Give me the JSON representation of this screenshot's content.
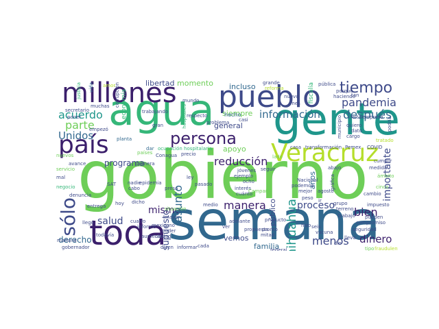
{
  "palette": {
    "dark_purple": "#3b1f6b",
    "indigo": "#3e4a89",
    "blue": "#31688e",
    "teal": "#1f968b",
    "green": "#35b779",
    "light_green": "#6ece58",
    "yellow_green": "#b5de2b",
    "yellow": "#fde725"
  },
  "words": [
    {
      "text": "gobierno",
      "color": "#6ece58"
    },
    {
      "text": "semana",
      "color": "#31688e"
    },
    {
      "text": "gente",
      "color": "#1f968b"
    },
    {
      "text": "agua",
      "color": "#35b779"
    },
    {
      "text": "millones",
      "color": "#3b1f6b"
    },
    {
      "text": "pueblo",
      "color": "#3e4a89"
    },
    {
      "text": "toda",
      "color": "#3b1f6b"
    },
    {
      "text": "país",
      "color": "#3b1f6b"
    },
    {
      "text": "Veracruz",
      "color": "#b5de2b"
    },
    {
      "text": "persona",
      "color": "#3b1f6b"
    },
    {
      "text": "tiempo",
      "color": "#3e4a89"
    },
    {
      "text": "pandemia",
      "color": "#3e4a89"
    },
    {
      "text": "después",
      "color": "#31688e"
    },
    {
      "text": "información",
      "color": "#31688e"
    },
    {
      "text": "acuerdo",
      "color": "#1f968b"
    },
    {
      "text": "parte",
      "color": "#6ece58"
    },
    {
      "text": "Unidos",
      "color": "#31688e"
    },
    {
      "text": "sólo",
      "color": "#3e4a89"
    },
    {
      "text": "reducción",
      "color": "#3b1f6b"
    },
    {
      "text": "programa",
      "color": "#3e4a89"
    },
    {
      "text": "mismo",
      "color": "#3b1f6b"
    },
    {
      "text": "salud",
      "color": "#3e4a89"
    },
    {
      "text": "manera",
      "color": "#3b1f6b"
    },
    {
      "text": "proceso",
      "color": "#3e4a89"
    },
    {
      "text": "bien",
      "color": "#3b1f6b"
    },
    {
      "text": "importante",
      "color": "#3e4a89"
    },
    {
      "text": "dinero",
      "color": "#3b1f6b"
    },
    {
      "text": "menos",
      "color": "#3e4a89"
    },
    {
      "text": "Chihuahua",
      "color": "#1f968b"
    },
    {
      "text": "presupuesto",
      "color": "#3e4a89"
    },
    {
      "text": "asunto",
      "color": "#31688e"
    },
    {
      "text": "derecho",
      "color": "#31688e"
    },
    {
      "text": "libertad",
      "color": "#3e4a89"
    },
    {
      "text": "momento",
      "color": "#6ece58"
    },
    {
      "text": "incluso",
      "color": "#31688e"
    },
    {
      "text": "siempre",
      "color": "#6ece58"
    },
    {
      "text": "general",
      "color": "#3e4a89"
    },
    {
      "text": "apoyo",
      "color": "#6ece58"
    },
    {
      "text": "público",
      "color": "#3e4a89"
    },
    {
      "text": "años",
      "color": "#31688e"
    },
    {
      "text": "familia",
      "color": "#31688e"
    },
    {
      "text": "vemos",
      "color": "#3e4a89"
    },
    {
      "text": "dar",
      "color": "#31688e"
    },
    {
      "text": "ocupación hospitalaria",
      "color": "#35b779"
    },
    {
      "text": "hecho",
      "color": "#31688e"
    },
    {
      "text": "problema",
      "color": "#3e4a89"
    },
    {
      "text": "casi",
      "color": "#3e4a89"
    },
    {
      "text": "mundo",
      "color": "#3e4a89"
    },
    {
      "text": "economía",
      "color": "#35b779"
    },
    {
      "text": "corrupción",
      "color": "#3e4a89"
    },
    {
      "text": "vida",
      "color": "#31688e"
    },
    {
      "text": "justicia",
      "color": "#35b779"
    },
    {
      "text": "secretario",
      "color": "#3e4a89"
    },
    {
      "text": "muchas",
      "color": "#3e4a89"
    },
    {
      "text": "trabajando",
      "color": "#3e4a89"
    },
    {
      "text": "planta",
      "color": "#31688e"
    },
    {
      "text": "empezó",
      "color": "#3e4a89"
    },
    {
      "text": "gran",
      "color": "#3e4a89"
    },
    {
      "text": "respecto",
      "color": "#3e4a89"
    },
    {
      "text": "mes",
      "color": "#3e4a89"
    },
    {
      "text": "nuevo",
      "color": "#3e4a89"
    },
    {
      "text": "grande",
      "color": "#3e4a89"
    },
    {
      "text": "reforma",
      "color": "#b5de2b"
    },
    {
      "text": "fiscalía",
      "color": "#35b779"
    },
    {
      "text": "pública",
      "color": "#3e4a89"
    },
    {
      "text": "haciendo",
      "color": "#3e4a89"
    },
    {
      "text": "falta",
      "color": "#3e4a89"
    },
    {
      "text": "empresa",
      "color": "#3e4a89"
    },
    {
      "text": "dato",
      "color": "#3e4a89"
    },
    {
      "text": "quiero",
      "color": "#3e4a89"
    },
    {
      "text": "cargo",
      "color": "#3e4a89"
    },
    {
      "text": "casa",
      "color": "#3e4a89"
    },
    {
      "text": "transformación",
      "color": "#3e4a89"
    },
    {
      "text": "Pemex",
      "color": "#3e4a89"
    },
    {
      "text": "COVID",
      "color": "#3e4a89"
    },
    {
      "text": "tratado",
      "color": "#b5de2b"
    },
    {
      "text": "podría",
      "color": "#3e4a89"
    },
    {
      "text": "epidemia",
      "color": "#3e4a89"
    },
    {
      "text": "primera",
      "color": "#3e4a89"
    },
    {
      "text": "avance",
      "color": "#3e4a89"
    },
    {
      "text": "servicio",
      "color": "#6ece58"
    },
    {
      "text": "negocio",
      "color": "#35b779"
    },
    {
      "text": "nadie",
      "color": "#3e4a89"
    },
    {
      "text": "cabo",
      "color": "#3e4a89"
    },
    {
      "text": "presa",
      "color": "#3e4a89"
    },
    {
      "text": "ley",
      "color": "#3e4a89"
    },
    {
      "text": "jóvenes",
      "color": "#3e4a89"
    },
    {
      "text": "ejemplo",
      "color": "#3e4a89"
    },
    {
      "text": "ocho",
      "color": "#3e4a89"
    },
    {
      "text": "interés",
      "color": "#3e4a89"
    },
    {
      "text": "cuánto",
      "color": "#3e4a89"
    },
    {
      "text": "seguir",
      "color": "#3e4a89"
    },
    {
      "text": "medida",
      "color": "#3e4a89"
    },
    {
      "text": "cumplir",
      "color": "#3e4a89"
    },
    {
      "text": "Campaña",
      "color": "#6ece58"
    },
    {
      "text": "Nacional",
      "color": "#3e4a89"
    },
    {
      "text": "podemos",
      "color": "#3e4a89"
    },
    {
      "text": "mejor",
      "color": "#3e4a89"
    },
    {
      "text": "gráfica",
      "color": "#3e4a89"
    },
    {
      "text": "peso",
      "color": "#3e4a89"
    },
    {
      "text": "pasado",
      "color": "#3e4a89"
    },
    {
      "text": "denuncia",
      "color": "#3e4a89"
    },
    {
      "text": "entrega",
      "color": "#3e4a89"
    },
    {
      "text": "llegó",
      "color": "#3e4a89"
    },
    {
      "text": "dicho",
      "color": "#3e4a89"
    },
    {
      "text": "mexicano",
      "color": "#3e4a89"
    },
    {
      "text": "medio",
      "color": "#3e4a89"
    },
    {
      "text": "poder",
      "color": "#3e4a89"
    },
    {
      "text": "situación",
      "color": "#6ece58"
    },
    {
      "text": "cada",
      "color": "#3e4a89"
    },
    {
      "text": "hoy",
      "color": "#3e4a89"
    },
    {
      "text": "producto",
      "color": "#3e4a89"
    },
    {
      "text": "hizo",
      "color": "#3e4a89"
    },
    {
      "text": "grupo",
      "color": "#3e4a89"
    },
    {
      "text": "terreno",
      "color": "#3e4a89"
    },
    {
      "text": "trabajo",
      "color": "#3e4a89"
    },
    {
      "text": "compromiso",
      "color": "#3e4a89"
    },
    {
      "text": "seguridad",
      "color": "#3e4a89"
    },
    {
      "text": "pueden",
      "color": "#3e4a89"
    },
    {
      "text": "impuesto",
      "color": "#3e4a89"
    },
    {
      "text": "cambio",
      "color": "#3e4a89"
    },
    {
      "text": "federal",
      "color": "#3e4a89"
    },
    {
      "text": "tipo",
      "color": "#6ece58"
    },
    {
      "text": "fraudulento",
      "color": "#b5de2b"
    },
    {
      "text": "dicen",
      "color": "#3e4a89"
    },
    {
      "text": "informar",
      "color": "#3e4a89"
    },
    {
      "text": "gobernador",
      "color": "#3e4a89"
    },
    {
      "text": "mañana",
      "color": "#3e4a89"
    },
    {
      "text": "todavía",
      "color": "#3e4a89"
    },
    {
      "text": "informe",
      "color": "#3e4a89"
    },
    {
      "text": "cuatro",
      "color": "#3e4a89"
    },
    {
      "text": "precio",
      "color": "#3e4a89"
    },
    {
      "text": "mal",
      "color": "#3e4a89"
    },
    {
      "text": "lleva",
      "color": "#3e4a89"
    },
    {
      "text": "ver",
      "color": "#3e4a89"
    },
    {
      "text": "dio",
      "color": "#3e4a89"
    },
    {
      "text": "ir",
      "color": "#3e4a89"
    },
    {
      "text": "cinco",
      "color": "#6ece58"
    },
    {
      "text": "agosto",
      "color": "#3e4a89"
    },
    {
      "text": "Conagua",
      "color": "#3e4a89"
    },
    {
      "text": "SAT",
      "color": "#3e4a89"
    },
    {
      "text": "mayor",
      "color": "#3e4a89"
    },
    {
      "text": "adelante",
      "color": "#3e4a89"
    },
    {
      "text": "lado",
      "color": "#6ece58"
    },
    {
      "text": "abajo",
      "color": "#3e4a89"
    },
    {
      "text": "ámbito",
      "color": "#6ece58"
    },
    {
      "text": "municipio",
      "color": "#3e4a89"
    },
    {
      "text": "porque",
      "color": "#3e4a89"
    },
    {
      "text": "tan",
      "color": "#3e4a89"
    },
    {
      "text": "poner",
      "color": "#3e4a89"
    },
    {
      "text": "países",
      "color": "#6ece58"
    },
    {
      "text": "nuevos",
      "color": "#6ece58"
    },
    {
      "text": "vacuna",
      "color": "#3e4a89"
    },
    {
      "text": "seis",
      "color": "#3e4a89"
    },
    {
      "text": "aumento",
      "color": "#3e4a89"
    },
    {
      "text": "ciudad",
      "color": "#3e4a89"
    },
    {
      "text": "hospitales",
      "color": "#35b779"
    },
    {
      "text": "propuesta",
      "color": "#3e4a89"
    },
    {
      "text": "mitad",
      "color": "#3e4a89"
    },
    {
      "text": "pronto",
      "color": "#3e4a89"
    },
    {
      "text": "amor",
      "color": "#b5de2b"
    }
  ]
}
